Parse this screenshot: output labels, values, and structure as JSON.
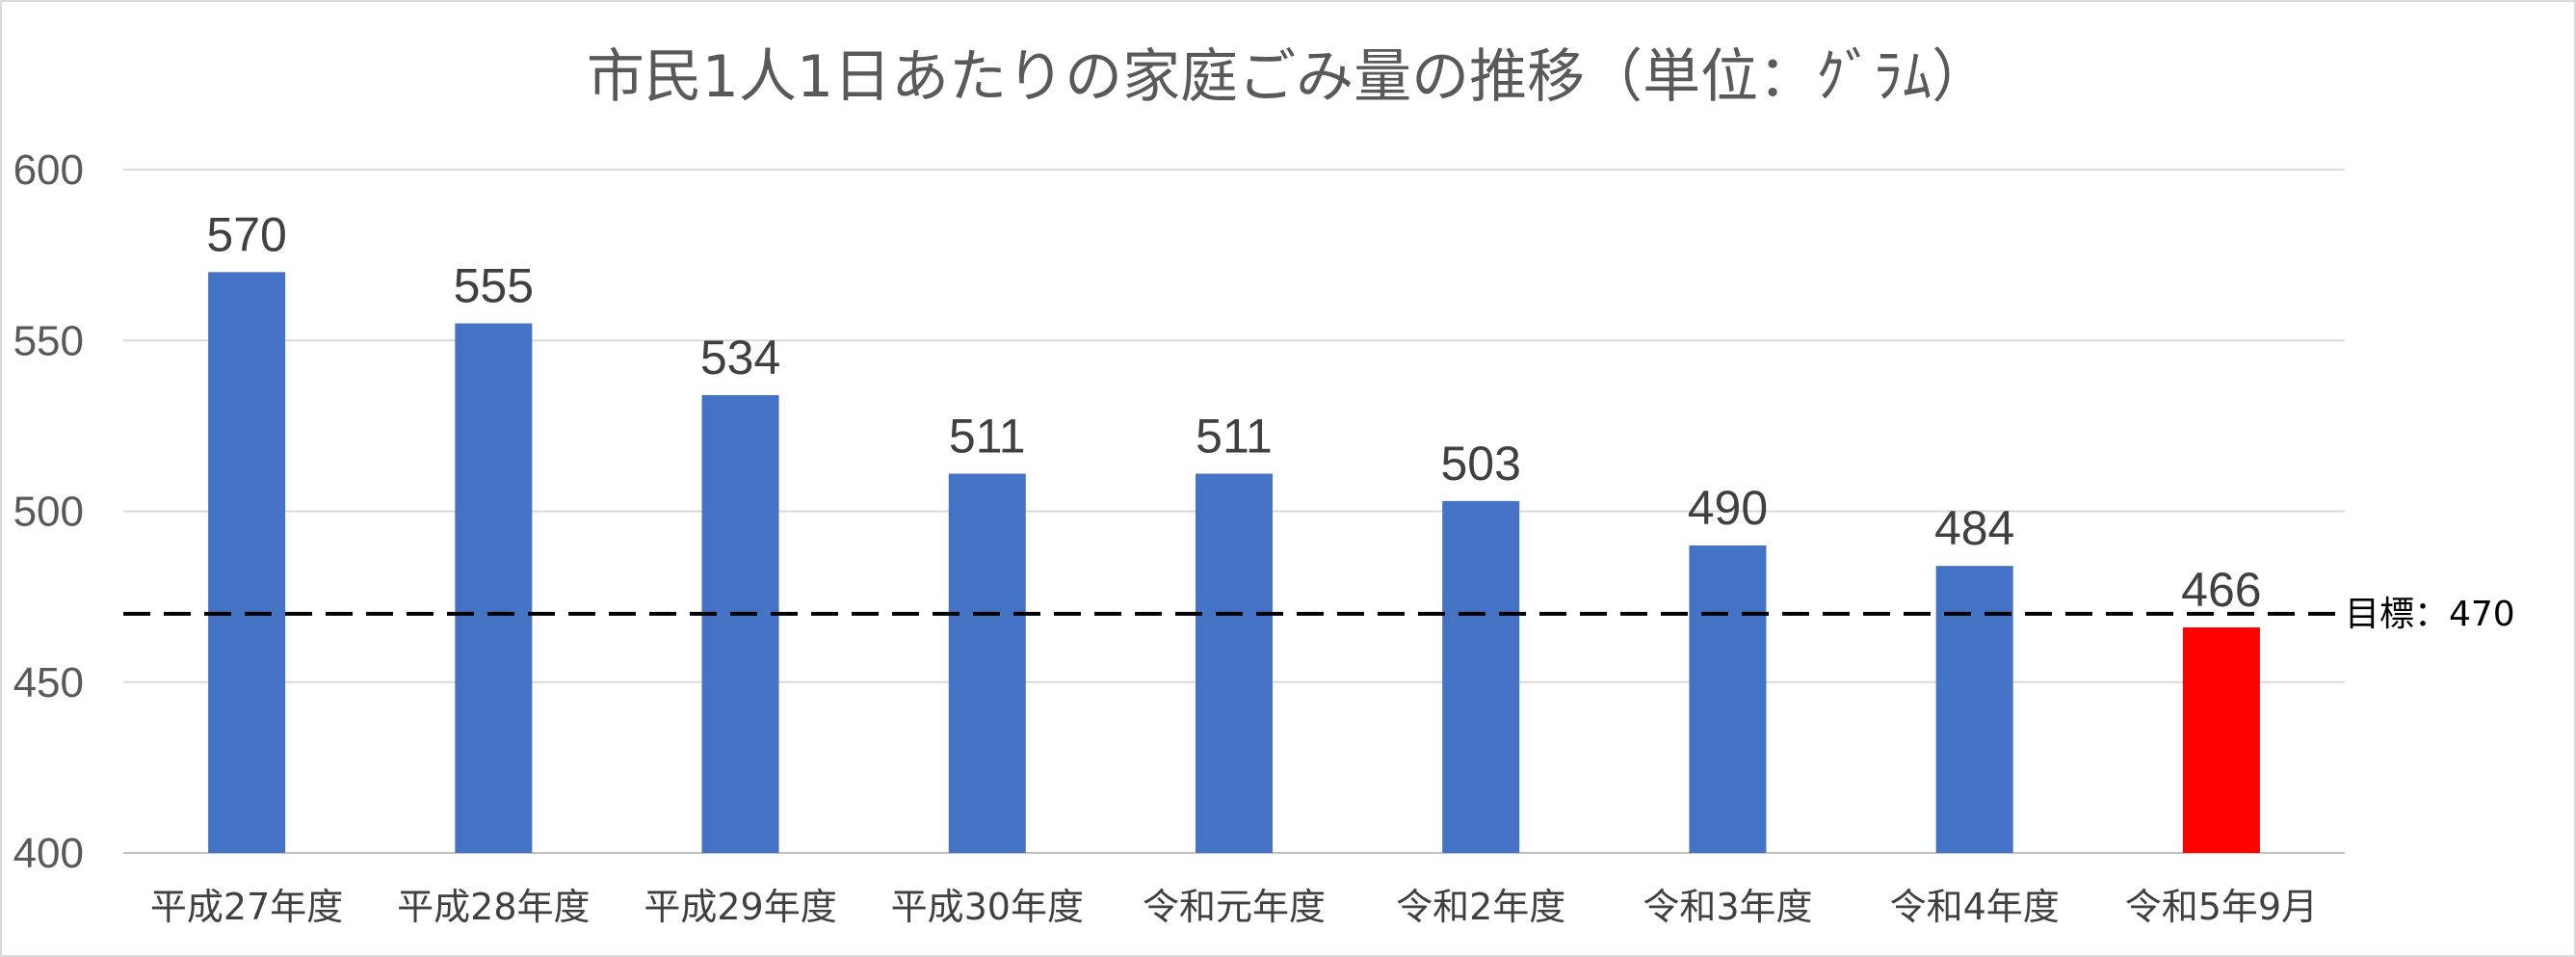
{
  "chart_data": {
    "type": "bar",
    "title": "市民1人1日あたりの家庭ごみ量の推移（単位：ｸﾞﾗﾑ）",
    "categories": [
      "平成27年度",
      "平成28年度",
      "平成29年度",
      "平成30年度",
      "令和元年度",
      "令和2年度",
      "令和3年度",
      "令和4年度",
      "令和5年9月"
    ],
    "values": [
      570,
      555,
      534,
      511,
      511,
      503,
      490,
      484,
      466
    ],
    "bar_colors": [
      "#4472c4",
      "#4472c4",
      "#4472c4",
      "#4472c4",
      "#4472c4",
      "#4472c4",
      "#4472c4",
      "#4472c4",
      "#ff0000"
    ],
    "ylim": [
      400,
      600
    ],
    "yticks": [
      400,
      450,
      500,
      550,
      600
    ],
    "grid": true,
    "target": {
      "value": 470,
      "label": "目標：470",
      "style": "dashed",
      "color": "#000000"
    }
  }
}
